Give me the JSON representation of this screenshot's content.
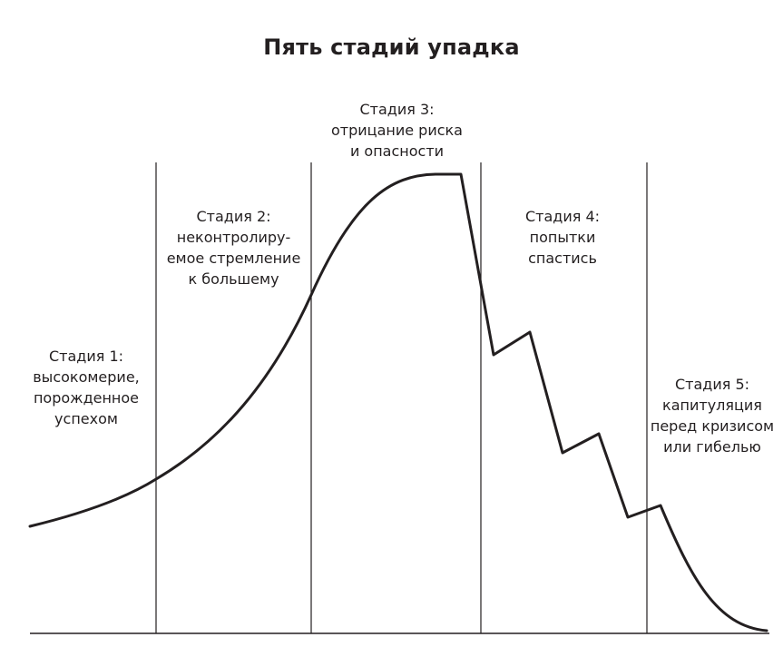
{
  "title": "Пять стадий упадка",
  "stages": [
    {
      "lines": [
        "Стадия 1:",
        "высокомерие,",
        "порожденное",
        "успехом"
      ]
    },
    {
      "lines": [
        "Стадия 2:",
        "неконтролиру-",
        "емое стремление",
        "к большему"
      ]
    },
    {
      "lines": [
        "Стадия 3:",
        "отрицание риска",
        "и опасности"
      ]
    },
    {
      "lines": [
        "Стадия 4:",
        "попытки",
        "спастись"
      ]
    },
    {
      "lines": [
        "Стадия 5:",
        "капитуляция",
        "перед кризисом",
        "или гибелью"
      ]
    }
  ],
  "colors": {
    "ink": "#231f20",
    "background": "#ffffff"
  }
}
